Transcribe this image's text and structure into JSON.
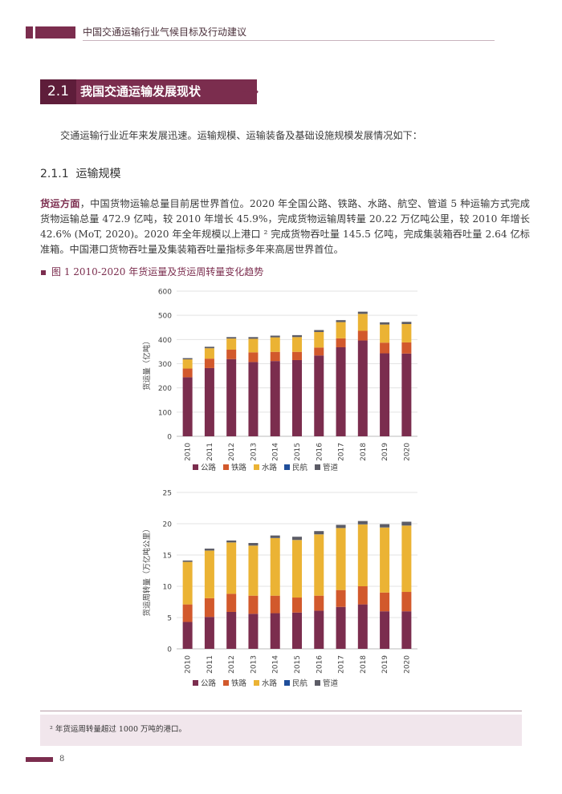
{
  "header": {
    "title": "中国交通运输行业气候目标及行动建议"
  },
  "section": {
    "number": "2.1",
    "title": "我国交通运输发展现状"
  },
  "intro": "交通运输行业近年来发展迅速。运输规模、运输装备及基础设施规模发展情况如下：",
  "subsection": {
    "number": "2.1.1",
    "title": "运输规模"
  },
  "freight_paragraph": {
    "lead": "货运方面",
    "body": "，中国货物运输总量目前居世界首位。2020 年全国公路、铁路、水路、航空、管道 5 种运输方式完成货物运输总量 472.9 亿吨，较 2010 年增长 45.9%，完成货物运输周转量 20.22 万亿吨公里，较 2010 年增长 42.6% (MoT, 2020)。2020 年全年规模以上港口 ² 完成货物吞吐量 145.5 亿吨，完成集装箱吞吐量 2.64 亿标准箱。中国港口货物吞吐量及集装箱吞吐量指标多年来高居世界首位。"
  },
  "figure_caption": "图 1  2010-2020 年货运量及货运周转量变化趋势",
  "footnote": "² 年货运周转量超过 1000 万吨的港口。",
  "page_number": "8",
  "colors": {
    "brand": "#7b2d4e",
    "road": "#7b2d4e",
    "rail": "#d2592c",
    "water": "#ebb334",
    "air": "#1f4e9a",
    "pipeline": "#5c5c66"
  },
  "chart_data": [
    {
      "type": "bar",
      "stacked": true,
      "categories": [
        "2010",
        "2011",
        "2012",
        "2013",
        "2014",
        "2015",
        "2016",
        "2017",
        "2018",
        "2019",
        "2020"
      ],
      "ylabel": "货运量（亿吨）",
      "ylim": [
        0,
        600
      ],
      "yticks": [
        "0",
        "100",
        "200",
        "300",
        "400",
        "500",
        "600"
      ],
      "legend": [
        "公路",
        "铁路",
        "水路",
        "民航",
        "管道"
      ],
      "legend_position": "bottom",
      "series": [
        {
          "name": "公路",
          "values": [
            244,
            282,
            319,
            307,
            311,
            315,
            334,
            368,
            396,
            343,
            342
          ]
        },
        {
          "name": "铁路",
          "values": [
            36,
            39,
            39,
            40,
            38,
            34,
            33,
            37,
            40,
            44,
            46
          ]
        },
        {
          "name": "水路",
          "values": [
            38,
            43,
            46,
            56,
            60,
            61,
            64,
            67,
            70,
            75,
            76
          ]
        },
        {
          "name": "民航",
          "values": [
            0.06,
            0.06,
            0.06,
            0.06,
            0.06,
            0.06,
            0.07,
            0.07,
            0.07,
            0.08,
            0.07
          ]
        },
        {
          "name": "管道",
          "values": [
            5,
            6,
            6,
            7,
            7,
            8,
            8,
            8,
            9,
            9,
            9
          ]
        }
      ]
    },
    {
      "type": "bar",
      "stacked": true,
      "categories": [
        "2010",
        "2011",
        "2012",
        "2013",
        "2014",
        "2015",
        "2016",
        "2017",
        "2018",
        "2019",
        "2020"
      ],
      "ylabel": "货运周转量（万亿吨公里）",
      "ylim": [
        0,
        25
      ],
      "yticks": [
        "0",
        "5",
        "10",
        "15",
        "20",
        "25"
      ],
      "legend": [
        "公路",
        "铁路",
        "水路",
        "民航",
        "管道"
      ],
      "legend_position": "bottom",
      "series": [
        {
          "name": "公路",
          "values": [
            4.3,
            5.1,
            5.9,
            5.6,
            5.7,
            5.8,
            6.1,
            6.7,
            7.1,
            6.0,
            6.0
          ]
        },
        {
          "name": "铁路",
          "values": [
            2.8,
            3.0,
            2.9,
            2.9,
            2.8,
            2.4,
            2.4,
            2.7,
            2.9,
            3.0,
            3.1
          ]
        },
        {
          "name": "水路",
          "values": [
            6.8,
            7.6,
            8.2,
            8.0,
            9.2,
            9.2,
            9.8,
            9.9,
            9.9,
            10.4,
            10.6
          ]
        },
        {
          "name": "民航",
          "values": [
            0.02,
            0.02,
            0.02,
            0.02,
            0.02,
            0.02,
            0.02,
            0.02,
            0.03,
            0.03,
            0.02
          ]
        },
        {
          "name": "管道",
          "values": [
            0.2,
            0.3,
            0.3,
            0.4,
            0.4,
            0.5,
            0.5,
            0.5,
            0.5,
            0.5,
            0.6
          ]
        }
      ]
    }
  ]
}
